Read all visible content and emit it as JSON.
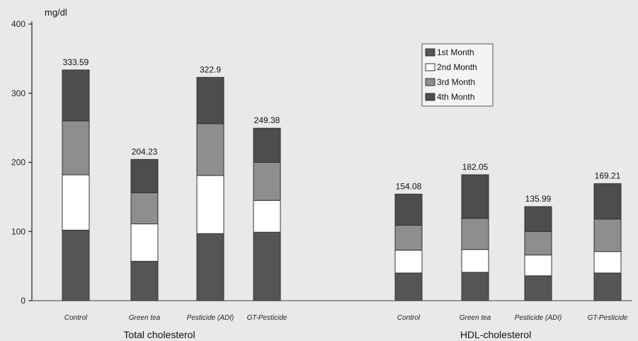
{
  "chart_data": {
    "type": "bar",
    "stacked": true,
    "ylabel": "mg/dl",
    "ylim": [
      0,
      400
    ],
    "yticks": [
      0,
      100,
      200,
      300,
      400
    ],
    "legend_position": "top-right",
    "groups": [
      {
        "name": "Total cholesterol",
        "categories": [
          "Control",
          "Green tea",
          "Pesticide (ADI)",
          "GT-Pesticide"
        ],
        "totals": [
          "333.59",
          "204.23",
          "322.9",
          "249.38"
        ]
      },
      {
        "name": "HDL-cholesterol",
        "categories": [
          "Control",
          "Green tea",
          "Pesticide (ADI)",
          "GT-Pesticide"
        ],
        "totals": [
          "154.08",
          "182.05",
          "135.99",
          "169.21"
        ]
      }
    ],
    "series": [
      {
        "name": "1st Month",
        "color": "#555555",
        "values": [
          [
            102,
            57,
            97,
            99
          ],
          [
            40,
            41,
            36,
            40
          ]
        ]
      },
      {
        "name": "2nd Month",
        "color": "#ffffff",
        "values": [
          [
            80,
            54,
            84,
            46
          ],
          [
            33,
            33,
            30,
            31
          ]
        ]
      },
      {
        "name": "3rd Month",
        "color": "#8e8e8e",
        "values": [
          [
            78,
            45,
            75,
            55
          ],
          [
            36,
            45,
            34,
            47
          ]
        ]
      },
      {
        "name": "4th Month",
        "color": "#4d4d4d",
        "values": [
          [
            73.59,
            48.23,
            66.9,
            49.38
          ],
          [
            45.08,
            63.05,
            35.99,
            51.21
          ]
        ]
      }
    ]
  }
}
